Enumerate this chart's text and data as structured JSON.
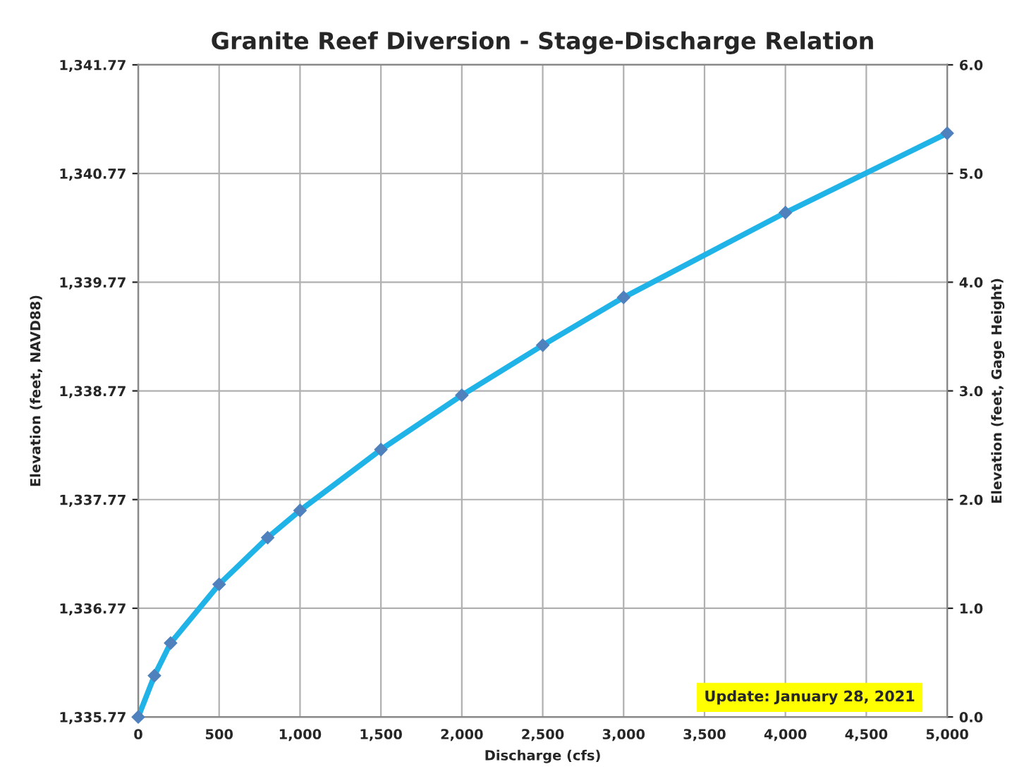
{
  "chart_data": {
    "type": "line",
    "title": "Granite Reef Diversion - Stage-Discharge Relation",
    "xlabel": "Discharge (cfs)",
    "ylabel": "Elevation (feet, NAVD88)",
    "y2label": "Elevation (feet, Gage Height)",
    "x": [
      0,
      100,
      200,
      500,
      800,
      1000,
      1500,
      2000,
      2500,
      3000,
      4000,
      5000
    ],
    "series": [
      {
        "color": "#1fb3e8",
        "axis": "y2",
        "values": [
          0.0,
          0.38,
          0.68,
          1.22,
          1.65,
          1.9,
          2.46,
          2.96,
          3.42,
          3.86,
          4.64,
          5.37
        ]
      }
    ],
    "marker": "diamond",
    "line_style": "solid",
    "grid": true,
    "legend": false,
    "xlim": [
      0,
      5000
    ],
    "xticks": [
      0,
      500,
      {
        "value": 1000,
        "label": "1,000"
      },
      {
        "value": 1500,
        "label": "1,500"
      },
      {
        "value": 2000,
        "label": "2,000"
      },
      {
        "value": 2500,
        "label": "2,500"
      },
      {
        "value": 3000,
        "label": "3,000"
      },
      {
        "value": 3500,
        "label": "3,500"
      },
      {
        "value": 4000,
        "label": "4,000"
      },
      {
        "value": 4500,
        "label": "4,500"
      },
      {
        "value": 5000,
        "label": "5,000"
      }
    ],
    "ylim": [
      1335.77,
      1341.77
    ],
    "yticks": [
      {
        "value": 1335.77,
        "label": "1,335.77"
      },
      {
        "value": 1336.77,
        "label": "1,336.77"
      },
      {
        "value": 1337.77,
        "label": "1,337.77"
      },
      {
        "value": 1338.77,
        "label": "1,338.77"
      },
      {
        "value": 1339.77,
        "label": "1,339.77"
      },
      {
        "value": 1340.77,
        "label": "1,340.77"
      },
      {
        "value": 1341.77,
        "label": "1,341.77"
      }
    ],
    "y2lim": [
      0,
      6
    ],
    "y2ticks": [
      {
        "value": 0,
        "label": "0.0"
      },
      {
        "value": 1,
        "label": "1.0"
      },
      {
        "value": 2,
        "label": "2.0"
      },
      {
        "value": 3,
        "label": "3.0"
      },
      {
        "value": 4,
        "label": "4.0"
      },
      {
        "value": 5,
        "label": "5.0"
      },
      {
        "value": 6,
        "label": "6.0"
      }
    ],
    "annotations": [
      "Update: January 28, 2021"
    ]
  }
}
